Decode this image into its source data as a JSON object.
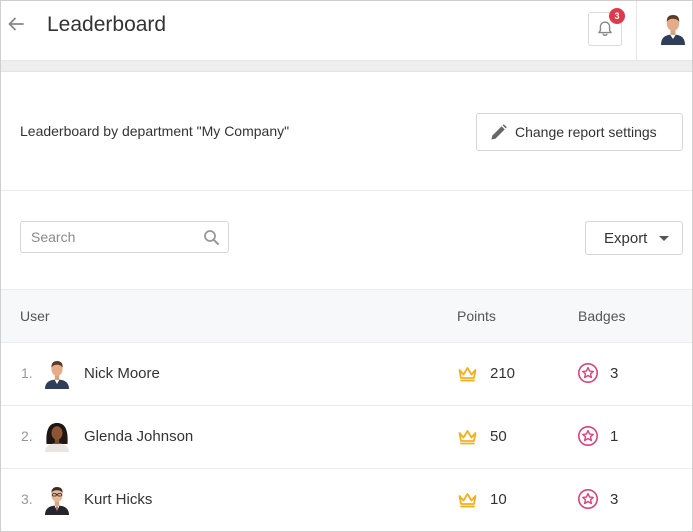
{
  "header": {
    "title": "Leaderboard",
    "notification_count": "3"
  },
  "report": {
    "label": "Leaderboard by department \"My Company\"",
    "settings_button": "Change report settings"
  },
  "toolbar": {
    "search_placeholder": "Search",
    "export_label": "Export"
  },
  "table": {
    "columns": {
      "user": "User",
      "points": "Points",
      "badges": "Badges"
    },
    "rows": [
      {
        "rank": "1.",
        "name": "Nick Moore",
        "points": "210",
        "badges": "3"
      },
      {
        "rank": "2.",
        "name": "Glenda Johnson",
        "points": "50",
        "badges": "1"
      },
      {
        "rank": "3.",
        "name": "Kurt Hicks",
        "points": "10",
        "badges": "3"
      }
    ]
  },
  "icons": {
    "back": "arrow-left-icon",
    "bell": "bell-icon",
    "pencil": "pencil-icon",
    "search": "search-icon",
    "crown": "crown-icon",
    "badge": "star-badge-icon"
  },
  "colors": {
    "notification_badge": "#e0394b",
    "crown": "#f2b01e",
    "badge_icon": "#d6457a"
  }
}
